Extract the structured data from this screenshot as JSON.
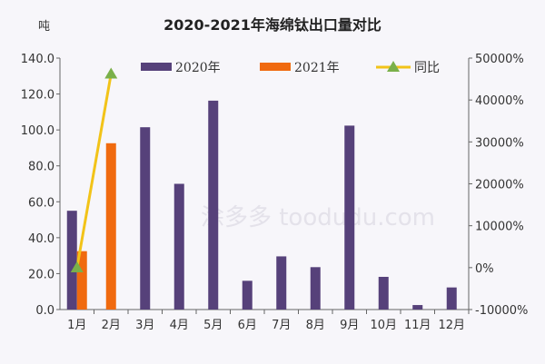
{
  "chart_data": {
    "type": "bar",
    "title": "2020-2021年海绵钛出口量对比",
    "ylabel": "吨",
    "categories": [
      "1月",
      "2月",
      "3月",
      "4月",
      "5月",
      "6月",
      "7月",
      "8月",
      "9月",
      "10月",
      "11月",
      "12月"
    ],
    "series": [
      {
        "name": "2020年",
        "type": "bar",
        "axis": "left",
        "color": "#56417a",
        "values": [
          55,
          null,
          101.5,
          70,
          116.3,
          16,
          29.6,
          23.6,
          102.4,
          18.2,
          2.5,
          12.3
        ]
      },
      {
        "name": "2021年",
        "type": "bar",
        "axis": "left",
        "color": "#f06a0f",
        "values": [
          32.5,
          92.6,
          null,
          null,
          null,
          null,
          null,
          null,
          null,
          null,
          null,
          null
        ]
      },
      {
        "name": "同比",
        "type": "line",
        "axis": "right",
        "color": "#f2c318",
        "marker_color": "#7ab04a",
        "values": [
          -41,
          46200,
          null,
          null,
          null,
          null,
          null,
          null,
          null,
          null,
          null,
          null
        ]
      }
    ],
    "ylim": [
      0,
      140
    ],
    "yticks": [
      "0.0",
      "20.0",
      "40.0",
      "60.0",
      "80.0",
      "100.0",
      "120.0",
      "140.0"
    ],
    "y2lim": [
      -10000,
      50000
    ],
    "y2ticks": [
      "-10000%",
      "0%",
      "10000%",
      "20000%",
      "30000%",
      "40000%",
      "50000%"
    ],
    "legend": "top",
    "grid": false
  },
  "watermark": "涂多多 toodudu.com"
}
